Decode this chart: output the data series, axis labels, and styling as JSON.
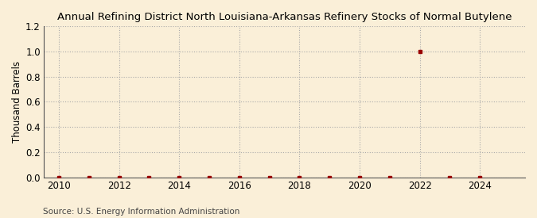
{
  "title": "Annual Refining District North Louisiana-Arkansas Refinery Stocks of Normal Butylene",
  "ylabel": "Thousand Barrels",
  "source": "Source: U.S. Energy Information Administration",
  "xlim": [
    2009.5,
    2025.5
  ],
  "ylim": [
    0.0,
    1.2
  ],
  "yticks": [
    0.0,
    0.2,
    0.4,
    0.6,
    0.8,
    1.0,
    1.2
  ],
  "xticks": [
    2010,
    2012,
    2014,
    2016,
    2018,
    2020,
    2022,
    2024
  ],
  "background_color": "#faefd8",
  "grid_color": "#aaaaaa",
  "marker_color": "#990000",
  "data_years": [
    2010,
    2011,
    2012,
    2013,
    2014,
    2015,
    2016,
    2017,
    2018,
    2019,
    2020,
    2021,
    2022,
    2023,
    2024
  ],
  "data_values": [
    0.0,
    0.0,
    0.0,
    0.0,
    0.0,
    0.0,
    0.0,
    0.0,
    0.0,
    0.0,
    0.0,
    0.0,
    1.0,
    0.0,
    0.0
  ],
  "title_fontsize": 9.5,
  "axis_fontsize": 8.5,
  "source_fontsize": 7.5
}
